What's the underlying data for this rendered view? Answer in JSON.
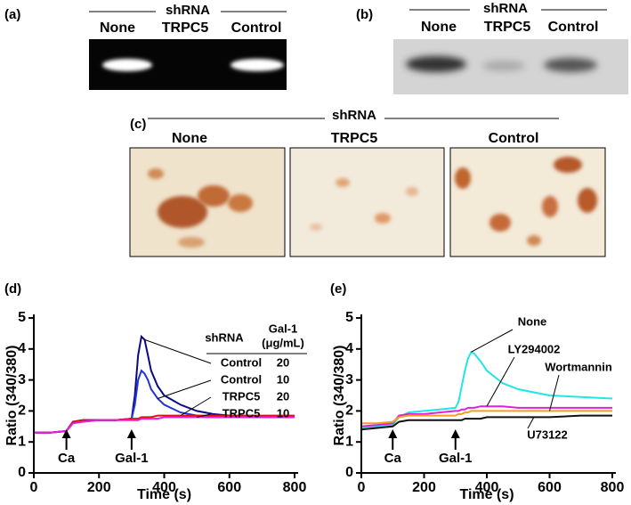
{
  "panels": [
    {
      "label": "(a)",
      "header": "shRNA",
      "lanes": [
        "None",
        "TRPC5",
        "Control"
      ]
    },
    {
      "label": "(b)",
      "header": "shRNA",
      "lanes": [
        "None",
        "TRPC5",
        "Control"
      ]
    },
    {
      "label": "(c)",
      "header": "shRNA",
      "lanes": [
        "None",
        "TRPC5",
        "Control"
      ]
    }
  ],
  "chart_data": [
    {
      "type": "line",
      "panel_label": "(d)",
      "x_label": "Time (s)",
      "y_label": "Ratio (340/380)",
      "xlim": [
        0,
        800
      ],
      "ylim": [
        0,
        5
      ],
      "xticks": [
        0,
        200,
        400,
        600,
        800
      ],
      "yticks": [
        0,
        1,
        2,
        3,
        4,
        5
      ],
      "legend_headers": [
        "shRNA",
        "Gal-1",
        "(μg/mL)"
      ],
      "annotations": [
        {
          "text": "Ca",
          "x": 100
        },
        {
          "text": "Gal-1",
          "x": 300
        }
      ],
      "x": [
        0,
        50,
        100,
        120,
        150,
        200,
        250,
        300,
        310,
        320,
        330,
        340,
        350,
        360,
        380,
        400,
        450,
        500,
        550,
        600,
        700,
        800
      ],
      "series": [
        {
          "name": "Control",
          "dose": "20",
          "color": "#0a0a80",
          "values": [
            1.3,
            1.3,
            1.35,
            1.65,
            1.7,
            1.7,
            1.7,
            1.75,
            2.5,
            3.8,
            4.4,
            4.3,
            3.8,
            3.3,
            2.8,
            2.5,
            2.2,
            2.0,
            1.9,
            1.85,
            1.8,
            1.8
          ]
        },
        {
          "name": "Control",
          "dose": "10",
          "color": "#2233dd",
          "values": [
            1.3,
            1.3,
            1.35,
            1.65,
            1.7,
            1.7,
            1.7,
            1.75,
            2.2,
            3.0,
            3.3,
            3.2,
            3.0,
            2.7,
            2.4,
            2.2,
            1.95,
            1.85,
            1.8,
            1.8,
            1.8,
            1.8
          ]
        },
        {
          "name": "TRPC5",
          "dose": "20",
          "color": "#dd1111",
          "values": [
            1.3,
            1.3,
            1.35,
            1.65,
            1.7,
            1.7,
            1.7,
            1.75,
            1.75,
            1.75,
            1.8,
            1.8,
            1.8,
            1.8,
            1.85,
            1.85,
            1.85,
            1.85,
            1.85,
            1.85,
            1.85,
            1.85
          ]
        },
        {
          "name": "TRPC5",
          "dose": "10",
          "color": "#e020e0",
          "values": [
            1.3,
            1.3,
            1.35,
            1.6,
            1.65,
            1.7,
            1.7,
            1.7,
            1.7,
            1.7,
            1.75,
            1.75,
            1.75,
            1.75,
            1.75,
            1.8,
            1.8,
            1.8,
            1.8,
            1.8,
            1.8,
            1.8
          ]
        }
      ]
    },
    {
      "type": "line",
      "panel_label": "(e)",
      "x_label": "Time (s)",
      "y_label": "Ratio (340/380)",
      "xlim": [
        0,
        800
      ],
      "ylim": [
        0,
        5
      ],
      "xticks": [
        0,
        200,
        400,
        600,
        800
      ],
      "yticks": [
        0,
        1,
        2,
        3,
        4,
        5
      ],
      "annotations": [
        {
          "text": "Ca",
          "x": 100
        },
        {
          "text": "Gal-1",
          "x": 300
        }
      ],
      "x": [
        0,
        50,
        100,
        120,
        150,
        200,
        250,
        300,
        310,
        320,
        330,
        340,
        350,
        360,
        380,
        400,
        450,
        500,
        550,
        600,
        700,
        800
      ],
      "series": [
        {
          "name": "None",
          "color": "#22e5e5",
          "values": [
            1.45,
            1.5,
            1.55,
            1.8,
            1.95,
            2.0,
            2.05,
            2.1,
            2.3,
            2.8,
            3.3,
            3.7,
            3.9,
            3.85,
            3.6,
            3.3,
            2.9,
            2.7,
            2.6,
            2.5,
            2.45,
            2.4
          ]
        },
        {
          "name": "LY294002",
          "color": "#e020e0",
          "values": [
            1.5,
            1.55,
            1.6,
            1.85,
            1.9,
            1.9,
            1.95,
            2.0,
            2.0,
            2.05,
            2.05,
            2.1,
            2.1,
            2.1,
            2.15,
            2.15,
            2.15,
            2.1,
            2.1,
            2.1,
            2.1,
            2.1
          ]
        },
        {
          "name": "Wortmannin",
          "color": "#f0a020",
          "values": [
            1.6,
            1.6,
            1.65,
            1.8,
            1.85,
            1.85,
            1.85,
            1.85,
            1.9,
            1.9,
            1.95,
            1.95,
            2.0,
            2.0,
            2.0,
            2.0,
            2.0,
            2.0,
            2.0,
            2.0,
            2.0,
            2.0
          ]
        },
        {
          "name": "U73122",
          "color": "#111111",
          "values": [
            1.4,
            1.45,
            1.5,
            1.65,
            1.7,
            1.7,
            1.7,
            1.7,
            1.7,
            1.7,
            1.75,
            1.75,
            1.75,
            1.75,
            1.75,
            1.8,
            1.8,
            1.8,
            1.8,
            1.8,
            1.85,
            1.85
          ]
        }
      ]
    }
  ]
}
